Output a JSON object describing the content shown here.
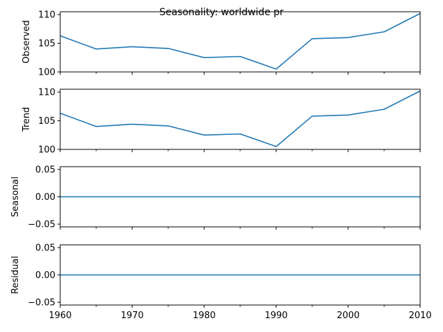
{
  "chart_data": {
    "type": "line",
    "title": "Seasonality: worldwide pr",
    "line_color": "#1f77b4",
    "x": [
      1960,
      1965,
      1970,
      1975,
      1980,
      1985,
      1990,
      1995,
      2000,
      2005,
      2010
    ],
    "xlim": [
      1960,
      2010
    ],
    "x_ticks": [
      1960,
      1970,
      1980,
      1990,
      2000,
      2010
    ],
    "x_minor_ticks": [
      1965,
      1975,
      1985,
      1995,
      2005
    ],
    "panels": [
      {
        "ylabel": "Observed",
        "values": [
          106.3,
          104.0,
          104.4,
          104.1,
          102.5,
          102.7,
          100.5,
          105.8,
          106.0,
          107.0,
          110.2
        ],
        "ylim": [
          100,
          110.5
        ],
        "y_ticks": [
          100,
          105,
          110
        ],
        "y_tick_labels": [
          "100",
          "105",
          "110"
        ]
      },
      {
        "ylabel": "Trend",
        "values": [
          106.3,
          104.0,
          104.4,
          104.1,
          102.5,
          102.7,
          100.5,
          105.8,
          106.0,
          107.0,
          110.2
        ],
        "ylim": [
          100,
          110.5
        ],
        "y_ticks": [
          100,
          105,
          110
        ],
        "y_tick_labels": [
          "100",
          "105",
          "110"
        ]
      },
      {
        "ylabel": "Seasonal",
        "values": [
          0,
          0,
          0,
          0,
          0,
          0,
          0,
          0,
          0,
          0,
          0
        ],
        "ylim": [
          -0.055,
          0.055
        ],
        "y_ticks": [
          -0.05,
          0.0,
          0.05
        ],
        "y_tick_labels": [
          "−0.05",
          "0.00",
          "0.05"
        ]
      },
      {
        "ylabel": "Residual",
        "values": [
          0,
          0,
          0,
          0,
          0,
          0,
          0,
          0,
          0,
          0,
          0
        ],
        "ylim": [
          -0.055,
          0.055
        ],
        "y_ticks": [
          -0.05,
          0.0,
          0.05
        ],
        "y_tick_labels": [
          "−0.05",
          "0.00",
          "0.05"
        ]
      }
    ]
  }
}
